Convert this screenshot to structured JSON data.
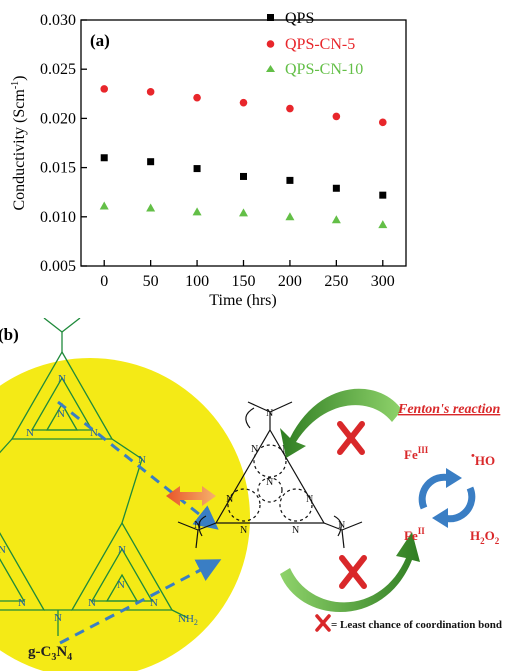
{
  "chart_data": {
    "type": "scatter",
    "panel_label": "(a)",
    "xlabel": "Time (hrs)",
    "ylabel": "Conductivity (Scm",
    "ylabel_sup": "-1",
    "ylabel_close": ")",
    "xlim": [
      -25,
      325
    ],
    "ylim": [
      0.005,
      0.03
    ],
    "x": [
      0,
      50,
      100,
      150,
      200,
      250,
      300
    ],
    "x_ticks": [
      "0",
      "50",
      "100",
      "150",
      "200",
      "250",
      "300"
    ],
    "y_tick_values": [
      0.005,
      0.01,
      0.015,
      0.02,
      0.025,
      0.03
    ],
    "y_ticks": [
      "0.005",
      "0.010",
      "0.015",
      "0.020",
      "0.025",
      "0.030"
    ],
    "legend_position": "top-right",
    "series": [
      {
        "name": "QPS",
        "marker": "square",
        "color": "#000000",
        "values": [
          0.016,
          0.0156,
          0.0149,
          0.0141,
          0.0137,
          0.0129,
          0.0122
        ]
      },
      {
        "name": "QPS-CN-5",
        "marker": "circle",
        "color": "#e8262b",
        "values": [
          0.023,
          0.0227,
          0.0221,
          0.0216,
          0.021,
          0.0202,
          0.0196
        ]
      },
      {
        "name": "QPS-CN-10",
        "marker": "triangle",
        "color": "#63bf47",
        "values": [
          0.0111,
          0.0109,
          0.0105,
          0.0104,
          0.01,
          0.0097,
          0.0092
        ]
      }
    ]
  },
  "scheme": {
    "panel_label": "(b)",
    "material_label": {
      "base": "g-C",
      "sub1": "3",
      "mid": "N",
      "sub2": "4"
    },
    "fenton_title": "Fenton's reaction",
    "fe3": {
      "base": "Fe",
      "sup": "III"
    },
    "fe2": {
      "base": "Fe",
      "sup": "II"
    },
    "radical": {
      "dot": "•",
      "base": "HO"
    },
    "h2o2": {
      "base": "H",
      "sub1": "2",
      "mid": "O",
      "sub2": "2"
    },
    "nh2": {
      "base": "NH",
      "sub": "2"
    },
    "atom": "N",
    "legend_text": "= Least chance of coordination  bond",
    "colors": {
      "yellow": "#f4ea16",
      "blue": "#3a7ec4",
      "green": "#3f9e2b",
      "red": "#d9282a",
      "orange": "#f08a3a"
    }
  }
}
